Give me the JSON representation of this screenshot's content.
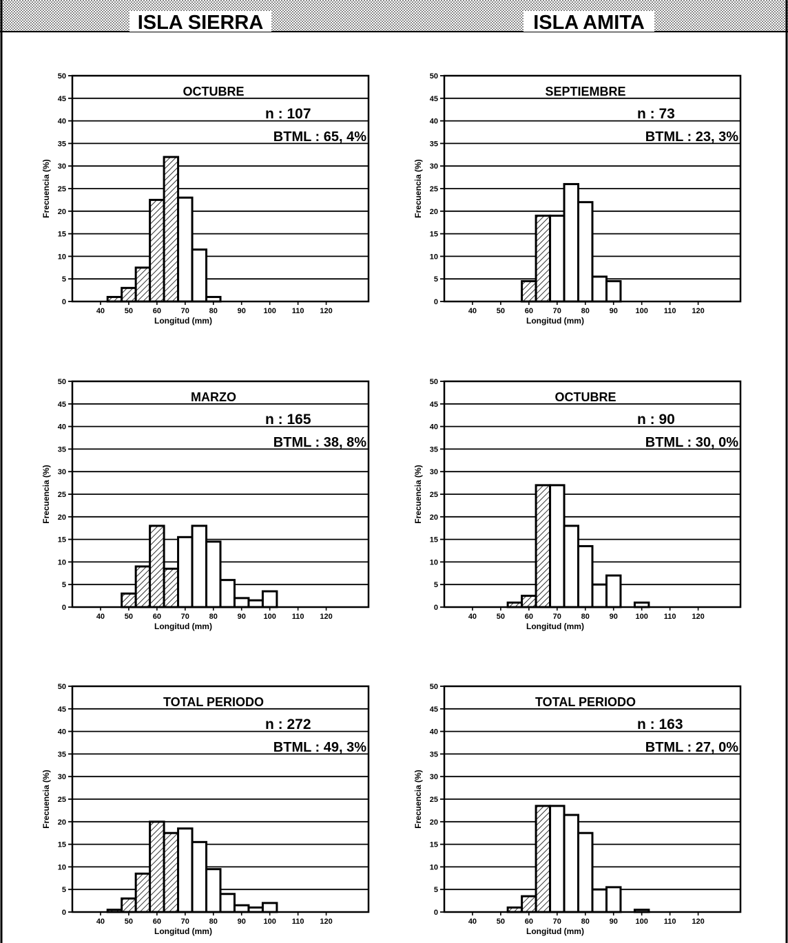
{
  "header": {
    "left_title": "ISLA SIERRA",
    "right_title": "ISLA AMITA"
  },
  "chart_data": [
    {
      "type": "bar",
      "column": "ISLA SIERRA",
      "title": "OCTUBRE",
      "n_text": "n :  107",
      "btml_text": "BTML : 65, 4%",
      "xlabel": "Longitud (mm)",
      "ylabel": "Frecuencia (%)",
      "ylim": [
        0,
        50
      ],
      "yticks": [
        0,
        5,
        10,
        15,
        20,
        25,
        30,
        35,
        40,
        45,
        50
      ],
      "xticks": [
        40,
        50,
        60,
        70,
        80,
        90,
        100,
        110,
        120
      ],
      "bins": [
        45,
        50,
        55,
        60,
        65,
        70,
        75,
        80,
        85,
        90,
        95,
        100,
        105,
        110,
        115,
        120
      ],
      "values": [
        1,
        3,
        7.5,
        22.5,
        32,
        23,
        11.5,
        1,
        0,
        0,
        0,
        0,
        0,
        0,
        0,
        0
      ],
      "hatched_bins": [
        45,
        50,
        55,
        60,
        65
      ]
    },
    {
      "type": "bar",
      "column": "ISLA AMITA",
      "title": "SEPTIEMBRE",
      "n_text": "n :  73",
      "btml_text": "BTML : 23, 3%",
      "xlabel": "Longitud (mm)",
      "ylabel": "Frecuencia (%)",
      "ylim": [
        0,
        50
      ],
      "yticks": [
        0,
        5,
        10,
        15,
        20,
        25,
        30,
        35,
        40,
        45,
        50
      ],
      "xticks": [
        40,
        50,
        60,
        70,
        80,
        90,
        100,
        110,
        120
      ],
      "bins": [
        45,
        50,
        55,
        60,
        65,
        70,
        75,
        80,
        85,
        90,
        95,
        100,
        105,
        110,
        115,
        120
      ],
      "values": [
        0,
        0,
        0,
        4.5,
        19,
        19,
        26,
        22,
        5.5,
        4.5,
        0,
        0,
        0,
        0,
        0,
        0
      ],
      "hatched_bins": [
        60,
        65
      ]
    },
    {
      "type": "bar",
      "column": "ISLA SIERRA",
      "title": "MARZO",
      "n_text": "n :  165",
      "btml_text": "BTML : 38, 8%",
      "xlabel": "Longitud (mm)",
      "ylabel": "Frecuencia (%)",
      "ylim": [
        0,
        50
      ],
      "yticks": [
        0,
        5,
        10,
        15,
        20,
        25,
        30,
        35,
        40,
        45,
        50
      ],
      "xticks": [
        40,
        50,
        60,
        70,
        80,
        90,
        100,
        110,
        120
      ],
      "bins": [
        45,
        50,
        55,
        60,
        65,
        70,
        75,
        80,
        85,
        90,
        95,
        100,
        105,
        110,
        115,
        120
      ],
      "values": [
        0,
        3,
        9,
        18,
        8.5,
        15.5,
        18,
        14.5,
        6,
        2,
        1.5,
        3.5,
        0,
        0,
        0,
        0
      ],
      "hatched_bins": [
        50,
        55,
        60,
        65
      ]
    },
    {
      "type": "bar",
      "column": "ISLA AMITA",
      "title": "OCTUBRE",
      "n_text": "n :  90",
      "btml_text": "BTML : 30, 0%",
      "xlabel": "Longitud (mm)",
      "ylabel": "Frecuencia (%)",
      "ylim": [
        0,
        50
      ],
      "yticks": [
        0,
        5,
        10,
        15,
        20,
        25,
        30,
        35,
        40,
        45,
        50
      ],
      "xticks": [
        40,
        50,
        60,
        70,
        80,
        90,
        100,
        110,
        120
      ],
      "bins": [
        45,
        50,
        55,
        60,
        65,
        70,
        75,
        80,
        85,
        90,
        95,
        100,
        105,
        110,
        115,
        120
      ],
      "values": [
        0,
        0,
        1,
        2.5,
        27,
        27,
        18,
        13.5,
        5,
        7,
        0,
        1,
        0,
        0,
        0,
        0
      ],
      "hatched_bins": [
        55,
        60,
        65
      ]
    },
    {
      "type": "bar",
      "column": "ISLA SIERRA",
      "title": "TOTAL PERIODO",
      "n_text": "n :  272",
      "btml_text": "BTML : 49, 3%",
      "xlabel": "Longitud (mm)",
      "ylabel": "Frecuencia (%)",
      "ylim": [
        0,
        50
      ],
      "yticks": [
        0,
        5,
        10,
        15,
        20,
        25,
        30,
        35,
        40,
        45,
        50
      ],
      "xticks": [
        40,
        50,
        60,
        70,
        80,
        90,
        100,
        110,
        120
      ],
      "bins": [
        45,
        50,
        55,
        60,
        65,
        70,
        75,
        80,
        85,
        90,
        95,
        100,
        105,
        110,
        115,
        120
      ],
      "values": [
        0.5,
        3,
        8.5,
        20,
        17.5,
        18.5,
        15.5,
        9.5,
        4,
        1.5,
        1,
        2,
        0,
        0,
        0,
        0
      ],
      "hatched_bins": [
        45,
        50,
        55,
        60,
        65
      ]
    },
    {
      "type": "bar",
      "column": "ISLA AMITA",
      "title": "TOTAL PERIODO",
      "n_text": "n :  163",
      "btml_text": "BTML : 27, 0%",
      "xlabel": "Longitud (mm)",
      "ylabel": "Frecuencia (%)",
      "ylim": [
        0,
        50
      ],
      "yticks": [
        0,
        5,
        10,
        15,
        20,
        25,
        30,
        35,
        40,
        45,
        50
      ],
      "xticks": [
        40,
        50,
        60,
        70,
        80,
        90,
        100,
        110,
        120
      ],
      "bins": [
        45,
        50,
        55,
        60,
        65,
        70,
        75,
        80,
        85,
        90,
        95,
        100,
        105,
        110,
        115,
        120
      ],
      "values": [
        0,
        0,
        1,
        3.5,
        23.5,
        23.5,
        21.5,
        17.5,
        5,
        5.5,
        0,
        0.5,
        0,
        0,
        0,
        0
      ],
      "hatched_bins": [
        55,
        60,
        65
      ]
    }
  ]
}
